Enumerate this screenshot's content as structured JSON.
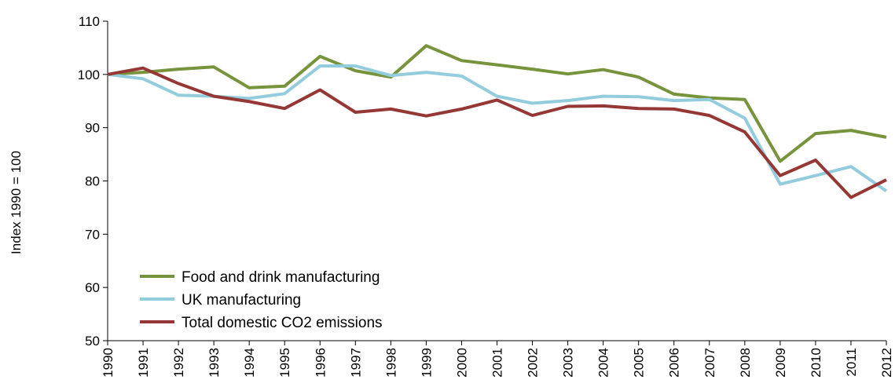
{
  "chart_data": {
    "type": "line",
    "title": "",
    "xlabel": "",
    "ylabel": "Index 1990 = 100",
    "ylim": [
      50,
      110
    ],
    "yticks": [
      50,
      60,
      70,
      80,
      90,
      100,
      110
    ],
    "grid": false,
    "legend_position": "bottom-left",
    "categories": [
      "1990",
      "1991",
      "1992",
      "1993",
      "1994",
      "1995",
      "1996",
      "1997",
      "1998",
      "1999",
      "2000",
      "2001",
      "2002",
      "2003",
      "2004",
      "2005",
      "2006",
      "2007",
      "2008",
      "2009",
      "2010",
      "2011",
      "2012"
    ],
    "series": [
      {
        "name": "Food and drink manufacturing",
        "color": "#77933c",
        "values": [
          100,
          100.4,
          101.0,
          101.4,
          97.5,
          97.8,
          103.4,
          100.7,
          99.5,
          105.4,
          102.6,
          101.8,
          101.0,
          100.1,
          100.9,
          99.5,
          96.3,
          95.6,
          95.3,
          83.7,
          88.9,
          89.5,
          88.2
        ]
      },
      {
        "name": "UK manufacturing",
        "color": "#93cddd",
        "values": [
          100,
          99.2,
          96.1,
          95.9,
          95.5,
          96.4,
          101.6,
          101.6,
          99.8,
          100.4,
          99.7,
          95.9,
          94.6,
          95.1,
          95.9,
          95.8,
          95.1,
          95.3,
          91.8,
          79.4,
          81.0,
          82.7,
          78.1
        ]
      },
      {
        "name": "Total domestic CO2 emissions",
        "color": "#953735",
        "values": [
          100,
          101.2,
          98.3,
          95.9,
          94.9,
          93.6,
          97.1,
          92.9,
          93.5,
          92.2,
          93.5,
          95.2,
          92.3,
          94.0,
          94.1,
          93.6,
          93.5,
          92.3,
          89.2,
          81.0,
          83.9,
          76.9,
          80.2
        ]
      }
    ]
  }
}
